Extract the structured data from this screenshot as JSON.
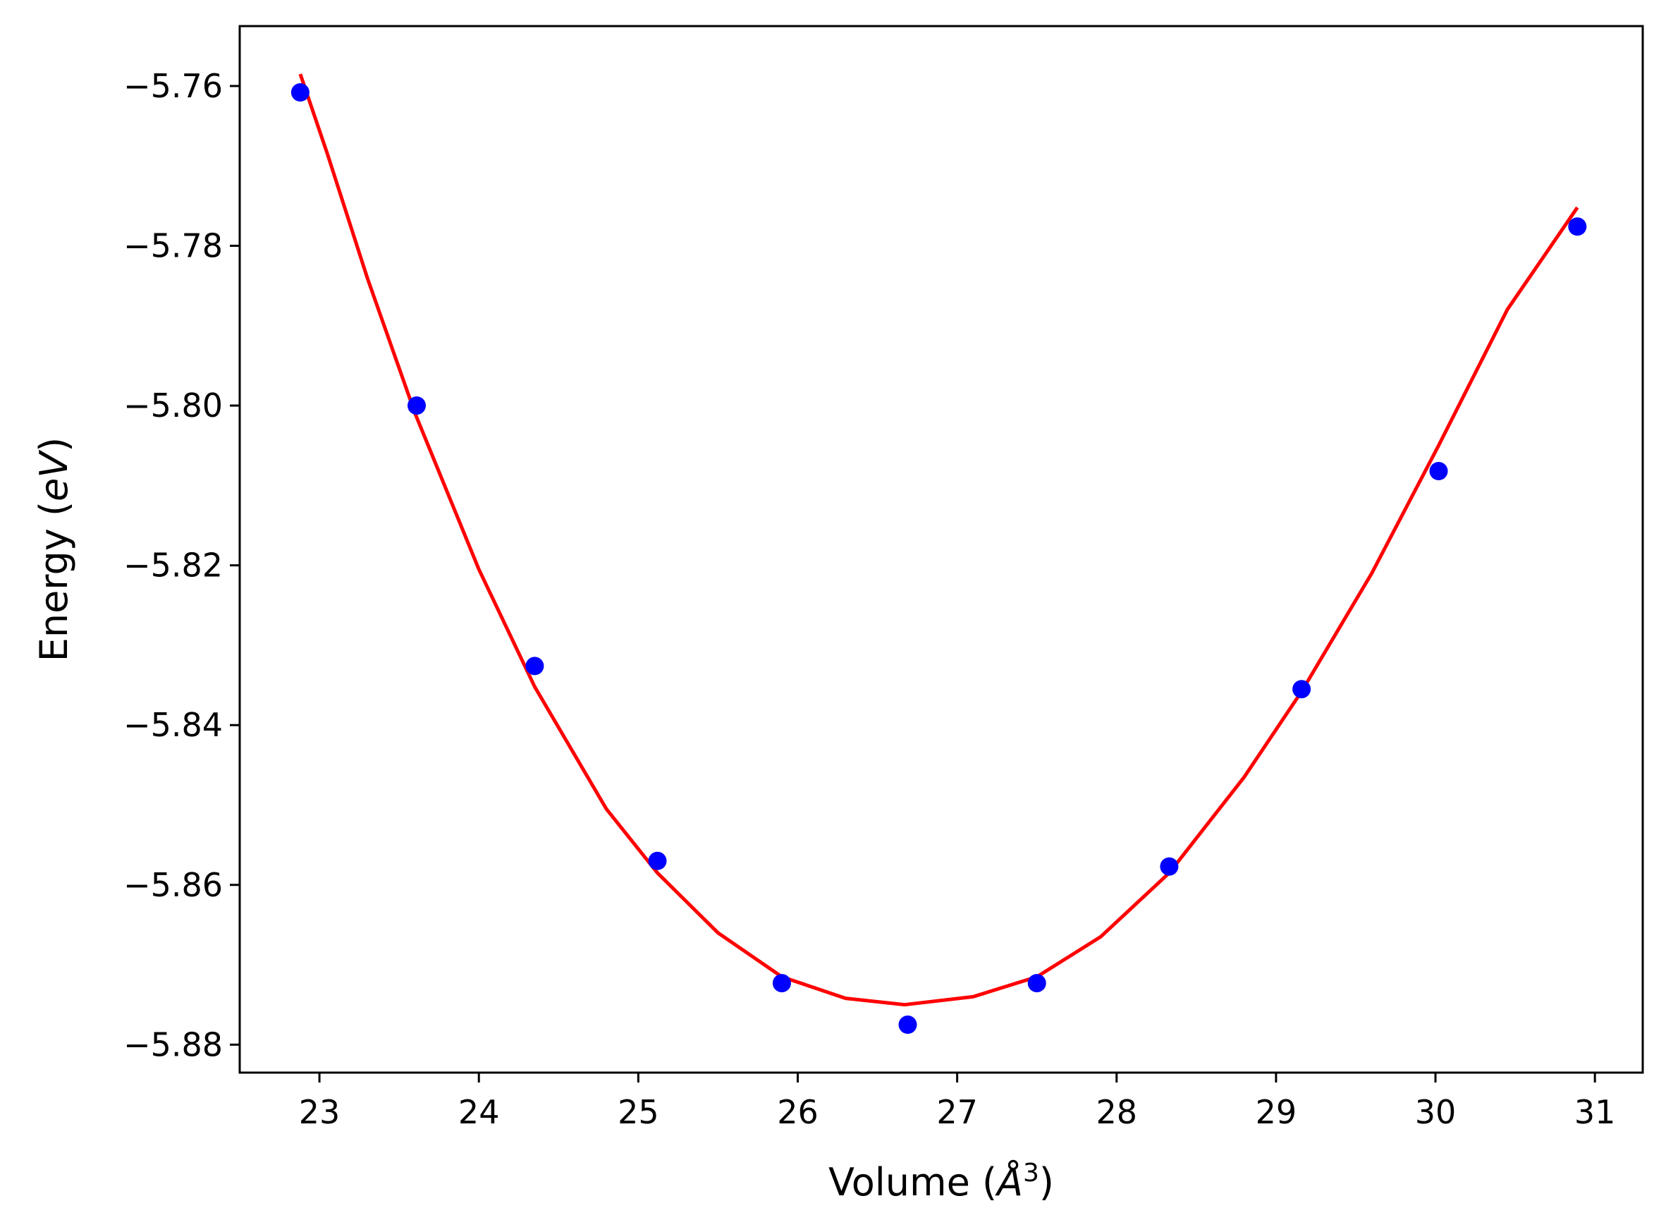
{
  "chart_data": {
    "type": "scatter",
    "xlabel": "Volume",
    "xlabel_unit": "Å",
    "xlabel_exp": "3",
    "ylabel": "Energy",
    "ylabel_unit": "eV",
    "xlim": [
      22.5,
      31.3
    ],
    "ylim": [
      -5.8835,
      -5.7525
    ],
    "x_ticks": [
      23,
      24,
      25,
      26,
      27,
      28,
      29,
      30,
      31
    ],
    "x_tick_labels": [
      "23",
      "24",
      "25",
      "26",
      "27",
      "28",
      "29",
      "30",
      "31"
    ],
    "y_ticks": [
      -5.76,
      -5.78,
      -5.8,
      -5.82,
      -5.84,
      -5.86,
      -5.88
    ],
    "y_tick_labels": [
      "−5.76",
      "−5.78",
      "−5.80",
      "−5.82",
      "−5.84",
      "−5.86",
      "−5.88"
    ],
    "grid": false,
    "series": [
      {
        "kind": "points",
        "color": "#0000ff",
        "x": [
          22.88,
          23.61,
          24.35,
          25.12,
          25.9,
          26.69,
          27.5,
          28.33,
          29.16,
          30.02,
          30.89
        ],
        "y": [
          -5.7608,
          -5.8,
          -5.8326,
          -5.857,
          -5.8723,
          -5.8775,
          -5.8723,
          -5.8577,
          -5.8355,
          -5.8082,
          -5.7776
        ]
      },
      {
        "kind": "fit-line",
        "color": "#ff0000",
        "x": [
          22.88,
          23.05,
          23.3,
          23.6,
          24.0,
          24.35,
          24.8,
          25.12,
          25.5,
          25.9,
          26.3,
          26.67,
          27.1,
          27.5,
          27.9,
          28.33,
          28.8,
          29.16,
          29.6,
          30.02,
          30.45,
          30.89
        ],
        "y": [
          -5.7585,
          -5.7685,
          -5.784,
          -5.801,
          -5.8205,
          -5.8352,
          -5.8505,
          -5.8585,
          -5.866,
          -5.8715,
          -5.8742,
          -5.875,
          -5.874,
          -5.8715,
          -5.8665,
          -5.8585,
          -5.8465,
          -5.8358,
          -5.821,
          -5.805,
          -5.788,
          -5.7752
        ]
      }
    ]
  }
}
